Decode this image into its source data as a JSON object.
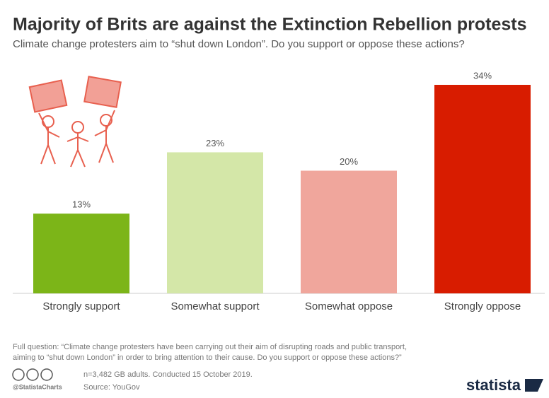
{
  "chart_data": {
    "type": "bar",
    "title": "Majority of Brits are against the Extinction Rebellion protests",
    "subtitle": "Climate change protesters aim to “shut down London”. Do you support or oppose these actions?",
    "categories": [
      "Strongly support",
      "Somewhat support",
      "Somewhat oppose",
      "Strongly oppose"
    ],
    "values": [
      13,
      23,
      20,
      34
    ],
    "value_labels": [
      "13%",
      "23%",
      "20%",
      "34%"
    ],
    "colors": [
      "#7cb518",
      "#d4e7a8",
      "#f0a69c",
      "#d81c00"
    ]
  },
  "footer": {
    "footnote": [
      "Full question: “Climate change protesters have been carrying out their aim of disrupting roads and public transport,",
      "aiming to “shut down London” in order to bring attention to their cause. Do you support or oppose these actions?”"
    ],
    "sample": "n=3,482 GB adults. Conducted 15 October 2019.",
    "handle": "@StatistaCharts",
    "source": "Source: YouGov",
    "brand": "statista"
  }
}
